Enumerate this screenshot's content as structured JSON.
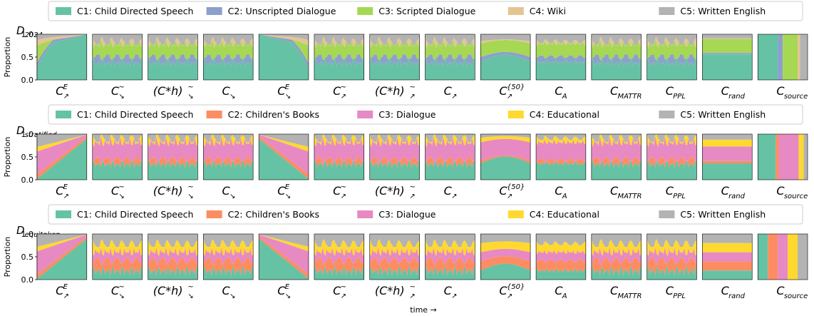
{
  "chart_data": {
    "type": "stacked-area-small-multiples",
    "xlabel": "time →",
    "ylabel": "Proportion",
    "y_ticks": [
      "0.0",
      "0.5",
      "1.0"
    ],
    "ylim": [
      0,
      1
    ],
    "panel_labels": [
      "C↗ᴱ",
      "C↘~",
      "(C*h)↘~",
      "C↘",
      "C↘ᴱ",
      "C↗~",
      "(C*h)↗~",
      "C↗",
      "C↗{50}",
      "C_A",
      "C_MATTR",
      "C_PPL",
      "C_rand",
      "C_source"
    ],
    "rows": [
      {
        "dataset": "D_2024",
        "legend": [
          {
            "label": "C1: Child Directed Speech",
            "color": "#66c2a5"
          },
          {
            "label": "C2: Unscripted Dialogue",
            "color": "#8da0cb"
          },
          {
            "label": "C3: Scripted Dialogue",
            "color": "#a6d854"
          },
          {
            "label": "C4: Wiki",
            "color": "#e5c494"
          },
          {
            "label": "C5: Written English",
            "color": "#b3b3b3"
          }
        ],
        "source_proportions": [
          0.4,
          0.1,
          0.3,
          0.05,
          0.15
        ],
        "rand_proportions": [
          0.56,
          0.03,
          0.3,
          0.02,
          0.09
        ]
      },
      {
        "dataset": "D_stratified",
        "legend": [
          {
            "label": "C1: Child Directed Speech",
            "color": "#66c2a5"
          },
          {
            "label": "C2: Children's Books",
            "color": "#fc8d62"
          },
          {
            "label": "C3: Dialogue",
            "color": "#e78ac3"
          },
          {
            "label": "C4: Educational",
            "color": "#ffd92f"
          },
          {
            "label": "C5: Written English",
            "color": "#b3b3b3"
          }
        ],
        "source_proportions": [
          0.36,
          0.06,
          0.4,
          0.1,
          0.08
        ],
        "rand_proportions": [
          0.36,
          0.05,
          0.32,
          0.15,
          0.12
        ]
      },
      {
        "dataset": "D_equitoken",
        "legend": [
          {
            "label": "C1: Child Directed Speech",
            "color": "#66c2a5"
          },
          {
            "label": "C2: Children's Books",
            "color": "#fc8d62"
          },
          {
            "label": "C3: Dialogue",
            "color": "#e78ac3"
          },
          {
            "label": "C4: Educational",
            "color": "#ffd92f"
          },
          {
            "label": "C5: Written English",
            "color": "#b3b3b3"
          }
        ],
        "source_proportions": [
          0.2,
          0.2,
          0.2,
          0.2,
          0.2
        ],
        "rand_proportions": [
          0.2,
          0.2,
          0.2,
          0.2,
          0.2
        ]
      }
    ]
  }
}
